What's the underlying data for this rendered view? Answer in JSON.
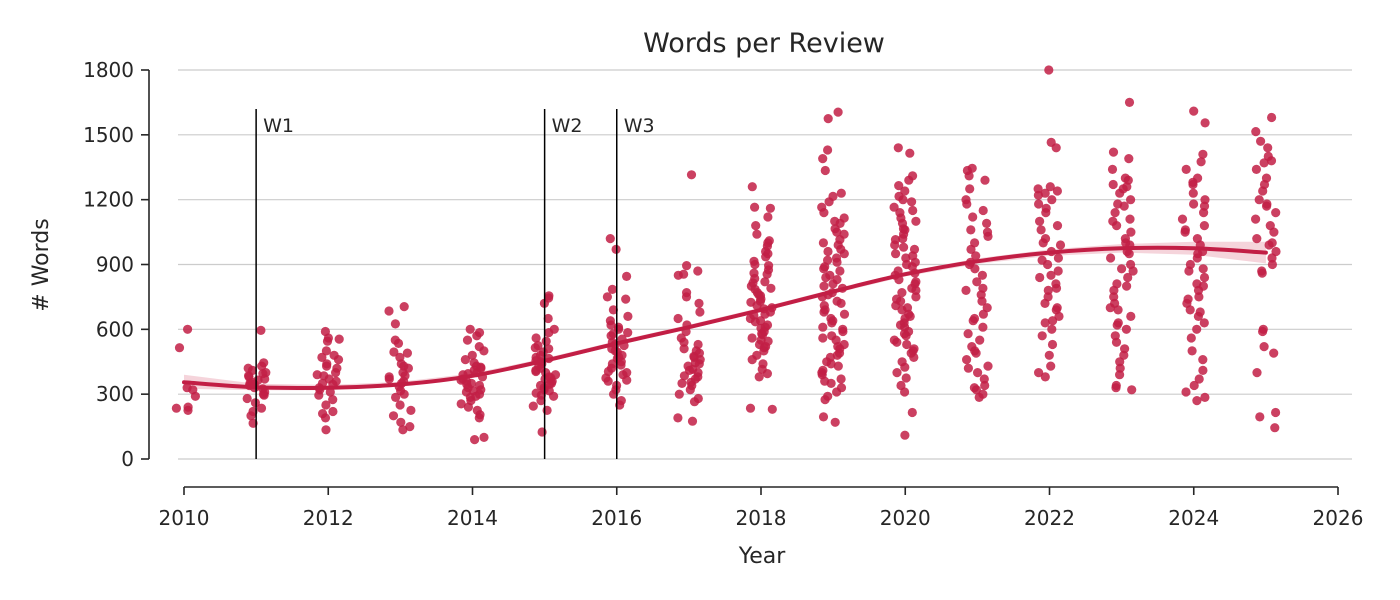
{
  "chart_data": {
    "type": "scatter",
    "title": "Words per Review",
    "xlabel": "Year",
    "ylabel": "# Words",
    "xlim": [
      2010,
      2026
    ],
    "ylim": [
      0,
      1800
    ],
    "x_ticks": [
      "2010",
      "2012",
      "2014",
      "2016",
      "2018",
      "2020",
      "2022",
      "2024",
      "2026"
    ],
    "y_ticks": [
      "0",
      "300",
      "600",
      "900",
      "1200",
      "1500",
      "1800"
    ],
    "grid": "horizontal",
    "point_color": "#c21e45",
    "trend_color": "#c21e45",
    "band_color": "#f2c6cf",
    "vertical_markers": [
      {
        "label": "W1",
        "x": 2011
      },
      {
        "label": "W2",
        "x": 2015
      },
      {
        "label": "W3",
        "x": 2016
      }
    ],
    "trend": {
      "x": [
        2010,
        2011,
        2012,
        2013,
        2014,
        2015,
        2016,
        2017,
        2018,
        2019,
        2020,
        2021,
        2022,
        2023,
        2024,
        2025
      ],
      "y": [
        355,
        332,
        330,
        345,
        385,
        455,
        535,
        610,
        690,
        775,
        855,
        915,
        955,
        975,
        975,
        955
      ],
      "lower": [
        325,
        318,
        318,
        334,
        375,
        445,
        525,
        600,
        680,
        765,
        845,
        903,
        940,
        955,
        945,
        905
      ],
      "upper": [
        390,
        348,
        343,
        357,
        396,
        466,
        546,
        621,
        701,
        786,
        866,
        928,
        970,
        995,
        1005,
        1005
      ]
    },
    "groups": [
      {
        "year": 2010,
        "values": [
          600,
          515,
          330,
          290,
          240,
          225,
          235,
          320
        ]
      },
      {
        "year": 2011,
        "values": [
          595,
          445,
          430,
          410,
          395,
          380,
          365,
          350,
          340,
          325,
          310,
          295,
          280,
          260,
          235,
          220,
          200,
          165,
          400,
          370,
          345,
          330,
          300,
          385,
          420,
          355
        ]
      },
      {
        "year": 2012,
        "values": [
          590,
          560,
          555,
          545,
          480,
          470,
          440,
          420,
          400,
          385,
          370,
          360,
          345,
          330,
          310,
          295,
          275,
          250,
          220,
          210,
          190,
          135,
          500,
          460,
          430,
          390,
          350,
          320
        ]
      },
      {
        "year": 2013,
        "values": [
          705,
          685,
          625,
          550,
          535,
          495,
          490,
          470,
          440,
          420,
          400,
          385,
          370,
          350,
          335,
          315,
          300,
          285,
          250,
          225,
          200,
          170,
          150,
          135,
          380,
          360,
          430
        ]
      },
      {
        "year": 2014,
        "values": [
          600,
          585,
          570,
          550,
          520,
          500,
          480,
          460,
          445,
          430,
          420,
          410,
          400,
          390,
          380,
          370,
          360,
          350,
          340,
          330,
          320,
          310,
          300,
          285,
          270,
          255,
          240,
          225,
          205,
          190,
          100,
          90,
          425,
          395,
          365,
          345,
          315,
          290
        ]
      },
      {
        "year": 2015,
        "values": [
          755,
          745,
          720,
          650,
          600,
          585,
          560,
          545,
          525,
          510,
          495,
          480,
          465,
          450,
          440,
          430,
          420,
          410,
          400,
          390,
          380,
          370,
          360,
          350,
          340,
          330,
          320,
          305,
          290,
          270,
          245,
          225,
          125,
          515,
          470,
          455,
          405,
          375,
          345,
          315,
          295
        ]
      },
      {
        "year": 2016,
        "values": [
          1020,
          970,
          845,
          785,
          750,
          740,
          690,
          660,
          640,
          620,
          600,
          585,
          570,
          555,
          540,
          525,
          510,
          495,
          480,
          465,
          450,
          435,
          420,
          405,
          390,
          375,
          360,
          340,
          320,
          300,
          270,
          250,
          610,
          580,
          530,
          500,
          470,
          440,
          400,
          365
        ]
      },
      {
        "year": 2017,
        "values": [
          1315,
          895,
          870,
          855,
          850,
          770,
          750,
          720,
          680,
          650,
          620,
          590,
          560,
          530,
          510,
          490,
          475,
          460,
          445,
          430,
          415,
          400,
          385,
          370,
          355,
          340,
          320,
          300,
          280,
          265,
          190,
          175,
          540,
          500,
          470,
          440,
          410,
          380,
          350
        ]
      },
      {
        "year": 2018,
        "values": [
          1260,
          1165,
          1160,
          1120,
          1080,
          1040,
          1010,
          985,
          960,
          935,
          915,
          895,
          875,
          855,
          835,
          815,
          800,
          785,
          770,
          755,
          740,
          725,
          710,
          695,
          680,
          665,
          650,
          635,
          620,
          605,
          590,
          575,
          560,
          545,
          530,
          515,
          500,
          480,
          460,
          440,
          415,
          395,
          380,
          235,
          230,
          1000,
          950,
          900,
          860,
          820,
          790,
          760,
          730,
          700,
          670,
          640,
          610,
          580,
          550,
          520
        ]
      },
      {
        "year": 2019,
        "values": [
          1605,
          1575,
          1430,
          1390,
          1335,
          1230,
          1215,
          1190,
          1165,
          1140,
          1115,
          1090,
          1065,
          1040,
          1015,
          990,
          970,
          950,
          930,
          910,
          890,
          870,
          850,
          830,
          810,
          790,
          770,
          750,
          730,
          710,
          690,
          670,
          650,
          630,
          610,
          590,
          570,
          550,
          530,
          510,
          490,
          470,
          450,
          430,
          410,
          390,
          370,
          350,
          330,
          310,
          290,
          275,
          195,
          170,
          1100,
          1050,
          1000,
          960,
          920,
          880,
          840,
          800,
          760,
          720,
          680,
          640,
          600,
          560,
          520,
          480,
          440,
          400,
          360
        ]
      },
      {
        "year": 2020,
        "values": [
          1440,
          1415,
          1310,
          1290,
          1265,
          1240,
          1215,
          1190,
          1165,
          1140,
          1115,
          1090,
          1065,
          1040,
          1015,
          990,
          970,
          950,
          930,
          910,
          890,
          870,
          850,
          830,
          810,
          790,
          770,
          750,
          730,
          710,
          690,
          670,
          650,
          630,
          610,
          590,
          570,
          550,
          530,
          510,
          490,
          470,
          450,
          425,
          400,
          375,
          340,
          310,
          215,
          110,
          1200,
          1150,
          1100,
          1060,
          1020,
          980,
          940,
          900,
          860,
          820,
          780,
          740,
          700,
          660,
          620,
          580,
          540,
          500
        ]
      },
      {
        "year": 2021,
        "values": [
          1345,
          1335,
          1310,
          1290,
          1250,
          1200,
          1150,
          1120,
          1090,
          1060,
          1030,
          1000,
          970,
          940,
          910,
          880,
          850,
          820,
          790,
          760,
          730,
          700,
          670,
          640,
          610,
          580,
          550,
          520,
          490,
          460,
          430,
          400,
          370,
          340,
          320,
          300,
          285,
          1180,
          1050,
          900,
          780,
          650,
          500,
          420,
          330
        ]
      },
      {
        "year": 2022,
        "values": [
          1800,
          1465,
          1440,
          1260,
          1250,
          1240,
          1220,
          1200,
          1180,
          1160,
          1140,
          1100,
          1060,
          1020,
          990,
          960,
          930,
          900,
          870,
          840,
          810,
          780,
          750,
          720,
          690,
          660,
          630,
          600,
          570,
          530,
          480,
          430,
          400,
          380,
          1230,
          1080,
          1000,
          920,
          850,
          790,
          700,
          640
        ]
      },
      {
        "year": 2023,
        "values": [
          1650,
          1420,
          1390,
          1340,
          1300,
          1290,
          1270,
          1250,
          1230,
          1200,
          1170,
          1140,
          1110,
          1080,
          1050,
          1020,
          990,
          960,
          930,
          900,
          870,
          840,
          810,
          780,
          750,
          720,
          690,
          660,
          630,
          600,
          570,
          540,
          510,
          480,
          450,
          420,
          390,
          340,
          330,
          320,
          1260,
          1180,
          1100,
          1000,
          950,
          880,
          800,
          700,
          620
        ]
      },
      {
        "year": 2024,
        "values": [
          1610,
          1555,
          1410,
          1375,
          1340,
          1300,
          1270,
          1230,
          1200,
          1170,
          1140,
          1110,
          1080,
          1050,
          1020,
          990,
          960,
          930,
          900,
          870,
          840,
          810,
          780,
          750,
          720,
          690,
          660,
          630,
          600,
          560,
          500,
          460,
          410,
          370,
          340,
          310,
          285,
          270,
          1280,
          1180,
          1060,
          950,
          880,
          800,
          740,
          680
        ]
      },
      {
        "year": 2025,
        "values": [
          1580,
          1515,
          1470,
          1440,
          1400,
          1370,
          1340,
          1300,
          1270,
          1240,
          1200,
          1170,
          1140,
          1110,
          1080,
          1050,
          1020,
          990,
          960,
          930,
          900,
          870,
          860,
          600,
          590,
          520,
          490,
          400,
          215,
          195,
          145,
          1380,
          1180,
          1000
        ]
      }
    ]
  }
}
